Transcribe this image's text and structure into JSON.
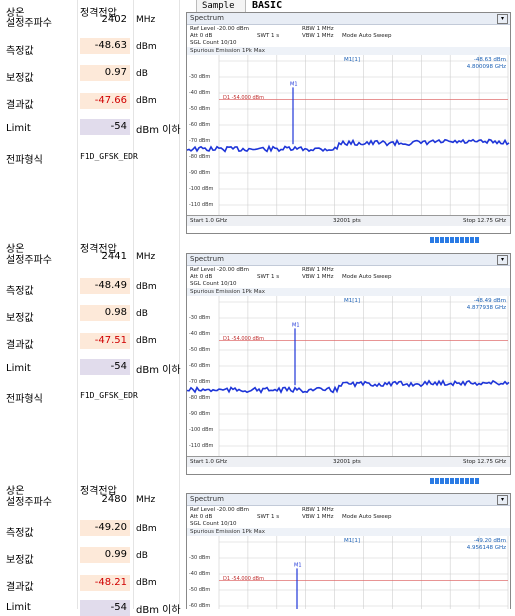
{
  "tabs": {
    "sample": "Sample",
    "basic": "BASIC"
  },
  "blocks": [
    {
      "header": {
        "left": "상온",
        "right": "정격전압"
      },
      "rows": {
        "freq": {
          "label": "설정주파수",
          "value": "2402",
          "unit": "MHz"
        },
        "meas": {
          "label": "측정값",
          "value": "-48.63",
          "unit": "dBm"
        },
        "corr": {
          "label": "보정값",
          "value": "0.97",
          "unit": "dB"
        },
        "result": {
          "label": "결과값",
          "value": "-47.66",
          "unit": "dBm"
        },
        "limit": {
          "label": "Limit",
          "value": "-54",
          "unit": "dBm 이하"
        },
        "emission": {
          "label": "전파형식",
          "value": "F1D_GFSK_EDR"
        }
      },
      "spectrum": {
        "title": "Spectrum",
        "ref_level": "Ref Level -20.00 dBm",
        "att": "Att  0 dB",
        "swt": "SWT 1 s",
        "rbw": "RBW 1 MHz",
        "vbw": "VBW 1 MHz",
        "mode": "Mode Auto Sweep",
        "sgl": "SGL Count 10/10",
        "trace": "Spurious Emission  1Pk Max",
        "marker_name": "M1[1]",
        "marker_level": "-48.63 dBm",
        "marker_freq": "4.800098 GHz",
        "limit_line": "D1 -54.000 dBm",
        "y_ticks": [
          "-30 dBm",
          "-40 dBm",
          "-50 dBm",
          "-60 dBm",
          "-70 dBm",
          "-80 dBm",
          "-90 dBm",
          "-100 dBm",
          "-110 dBm"
        ],
        "start": "Start 1.0 GHz",
        "points": "32001 pts",
        "stop": "Stop 12.75 GHz"
      }
    },
    {
      "header": {
        "left": "상온",
        "right": "정격전압"
      },
      "rows": {
        "freq": {
          "label": "설정주파수",
          "value": "2441",
          "unit": "MHz"
        },
        "meas": {
          "label": "측정값",
          "value": "-48.49",
          "unit": "dBm"
        },
        "corr": {
          "label": "보정값",
          "value": "0.98",
          "unit": "dB"
        },
        "result": {
          "label": "결과값",
          "value": "-47.51",
          "unit": "dBm"
        },
        "limit": {
          "label": "Limit",
          "value": "-54",
          "unit": "dBm 이하"
        },
        "emission": {
          "label": "전파형식",
          "value": "F1D_GFSK_EDR"
        }
      },
      "spectrum": {
        "title": "Spectrum",
        "ref_level": "Ref Level -20.00 dBm",
        "att": "Att  0 dB",
        "swt": "SWT 1 s",
        "rbw": "RBW 1 MHz",
        "vbw": "VBW 1 MHz",
        "mode": "Mode Auto Sweep",
        "sgl": "SGL Count 10/10",
        "trace": "Spurious Emission  1Pk Max",
        "marker_name": "M1[1]",
        "marker_level": "-48.49 dBm",
        "marker_freq": "4.877938 GHz",
        "limit_line": "D1 -54.000 dBm",
        "y_ticks": [
          "-30 dBm",
          "-40 dBm",
          "-50 dBm",
          "-60 dBm",
          "-70 dBm",
          "-80 dBm",
          "-90 dBm",
          "-100 dBm",
          "-110 dBm"
        ],
        "start": "Start 1.0 GHz",
        "points": "32001 pts",
        "stop": "Stop 12.75 GHz"
      }
    },
    {
      "header": {
        "left": "상온",
        "right": "정격전압"
      },
      "rows": {
        "freq": {
          "label": "설정주파수",
          "value": "2480",
          "unit": "MHz"
        },
        "meas": {
          "label": "측정값",
          "value": "-49.20",
          "unit": "dBm"
        },
        "corr": {
          "label": "보정값",
          "value": "0.99",
          "unit": "dB"
        },
        "result": {
          "label": "결과값",
          "value": "-48.21",
          "unit": "dBm"
        },
        "limit": {
          "label": "Limit",
          "value": "-54",
          "unit": "dBm 이하"
        }
      },
      "spectrum": {
        "title": "Spectrum",
        "ref_level": "Ref Level -20.00 dBm",
        "att": "Att  0 dB",
        "swt": "SWT 1 s",
        "rbw": "RBW 1 MHz",
        "vbw": "VBW 1 MHz",
        "mode": "Mode Auto Sweep",
        "sgl": "SGL Count 10/10",
        "trace": "Spurious Emission  1Pk Max",
        "marker_name": "M1[1]",
        "marker_level": "-49.20 dBm",
        "marker_freq": "4.956148 GHz",
        "limit_line": "D1 -54.000 dBm",
        "y_ticks": [
          "-30 dBm",
          "-40 dBm",
          "-50 dBm",
          "-60 dBm"
        ]
      }
    }
  ]
}
